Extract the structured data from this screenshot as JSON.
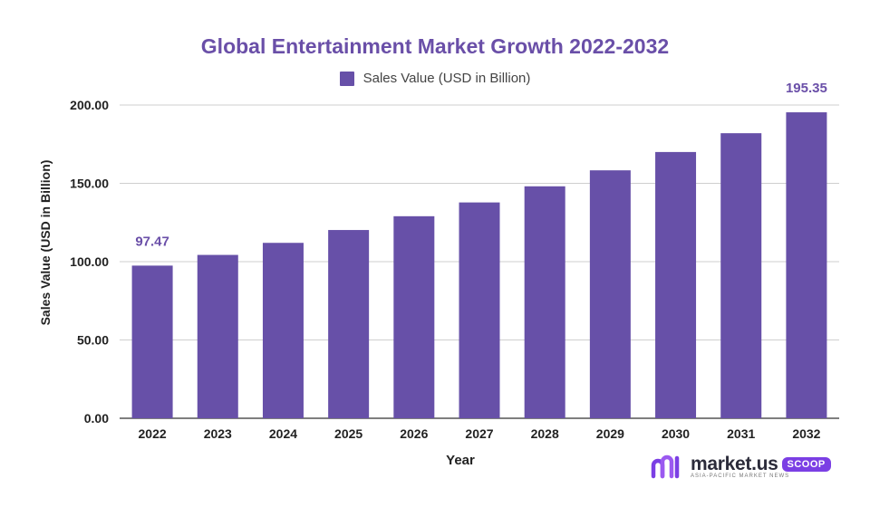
{
  "chart_data": {
    "type": "bar",
    "title": "Global Entertainment Market Growth 2022-2032",
    "xlabel": "Year",
    "ylabel": "Sales Value (USD in Billion)",
    "ylim": [
      0,
      200
    ],
    "yticks": [
      "0.00",
      "50.00",
      "100.00",
      "150.00",
      "200.00"
    ],
    "categories": [
      "2022",
      "2023",
      "2024",
      "2025",
      "2026",
      "2027",
      "2028",
      "2029",
      "2030",
      "2031",
      "2032"
    ],
    "series": [
      {
        "name": "Sales Value (USD in Billion)",
        "values": [
          97.47,
          104.3,
          112.0,
          120.2,
          129.0,
          137.8,
          148.1,
          158.3,
          170.0,
          182.0,
          195.35
        ],
        "color": "#6750a8"
      }
    ],
    "data_labels": [
      {
        "category": "2022",
        "text": "97.47"
      },
      {
        "category": "2032",
        "text": "195.35"
      }
    ],
    "grid": true,
    "legend_position": "top-center"
  },
  "brand": {
    "name": "market.us",
    "badge": "SCOOP",
    "tagline": "ASIA-PACIFIC MARKET NEWS",
    "accent": "#7b3fe4"
  }
}
